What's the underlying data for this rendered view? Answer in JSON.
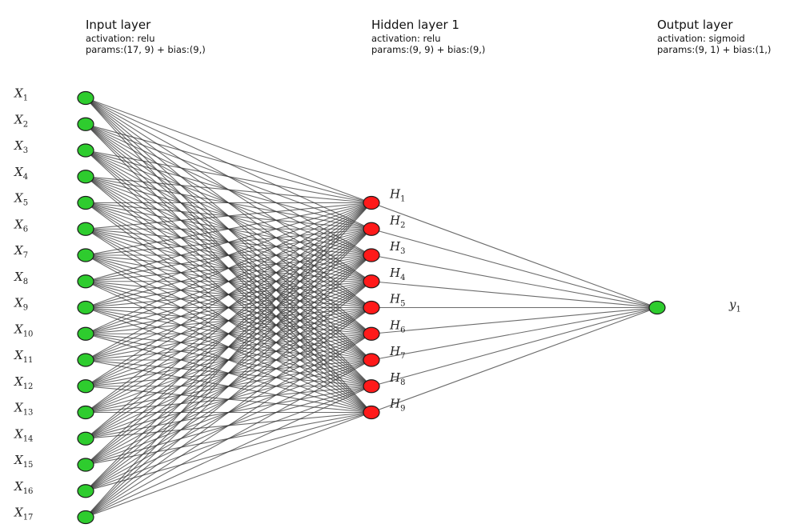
{
  "layers": [
    {
      "title": "Input layer",
      "activation": "activation: relu",
      "params": "params:(17, 9) + bias:(9,)"
    },
    {
      "title": "Hidden layer 1",
      "activation": "activation: relu",
      "params": "params:(9, 9) + bias:(9,)"
    },
    {
      "title": "Output layer",
      "activation": "activation: sigmoid",
      "params": "params:(9, 1) + bias:(1,)"
    }
  ],
  "network": {
    "input_labels": [
      {
        "base": "X",
        "sub": "1"
      },
      {
        "base": "X",
        "sub": "2"
      },
      {
        "base": "X",
        "sub": "3"
      },
      {
        "base": "X",
        "sub": "4"
      },
      {
        "base": "X",
        "sub": "5"
      },
      {
        "base": "X",
        "sub": "6"
      },
      {
        "base": "X",
        "sub": "7"
      },
      {
        "base": "X",
        "sub": "8"
      },
      {
        "base": "X",
        "sub": "9"
      },
      {
        "base": "X",
        "sub": "10"
      },
      {
        "base": "X",
        "sub": "11"
      },
      {
        "base": "X",
        "sub": "12"
      },
      {
        "base": "X",
        "sub": "13"
      },
      {
        "base": "X",
        "sub": "14"
      },
      {
        "base": "X",
        "sub": "15"
      },
      {
        "base": "X",
        "sub": "16"
      },
      {
        "base": "X",
        "sub": "17"
      }
    ],
    "hidden_labels": [
      {
        "base": "H",
        "sub": "1"
      },
      {
        "base": "H",
        "sub": "2"
      },
      {
        "base": "H",
        "sub": "3"
      },
      {
        "base": "H",
        "sub": "4"
      },
      {
        "base": "H",
        "sub": "5"
      },
      {
        "base": "H",
        "sub": "6"
      },
      {
        "base": "H",
        "sub": "7"
      },
      {
        "base": "H",
        "sub": "8"
      },
      {
        "base": "H",
        "sub": "9"
      }
    ],
    "output_labels": [
      {
        "base": "y",
        "sub": "1"
      }
    ],
    "colors": {
      "input_node": "#2ecc2e",
      "hidden_node": "#ff1a1a",
      "output_node": "#2ecc2e",
      "node_stroke": "#1a1a1a",
      "edge": "#333333"
    }
  }
}
